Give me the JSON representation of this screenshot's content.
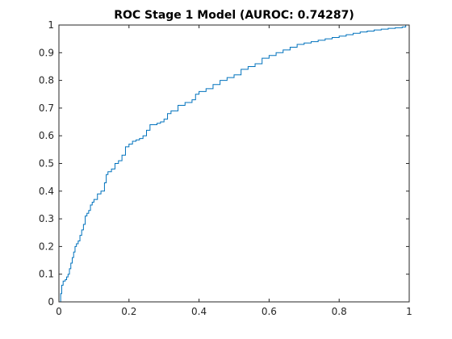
{
  "chart_data": {
    "type": "line",
    "title": "ROC Stage 1 Model (AUROC: 0.74287)",
    "xlabel": "",
    "ylabel": "",
    "xlim": [
      0,
      1
    ],
    "ylim": [
      0,
      1
    ],
    "x_ticks": [
      0,
      0.2,
      0.4,
      0.6,
      0.8,
      1
    ],
    "x_tick_labels": [
      "0",
      "0.2",
      "0.4",
      "0.6",
      "0.8",
      "1"
    ],
    "y_ticks": [
      0,
      0.1,
      0.2,
      0.3,
      0.4,
      0.5,
      0.6,
      0.7,
      0.8,
      0.9,
      1
    ],
    "y_tick_labels": [
      "0",
      "0.1",
      "0.2",
      "0.3",
      "0.4",
      "0.5",
      "0.6",
      "0.7",
      "0.8",
      "0.9",
      "1"
    ],
    "grid": false,
    "line_color": "#0072bd",
    "series": [
      {
        "x": [
          0,
          0.005,
          0.008,
          0.012,
          0.018,
          0.022,
          0.026,
          0.03,
          0.034,
          0.038,
          0.042,
          0.046,
          0.05,
          0.055,
          0.06,
          0.065,
          0.07,
          0.075,
          0.08,
          0.085,
          0.09,
          0.095,
          0.1,
          0.11,
          0.12,
          0.13,
          0.135,
          0.14,
          0.15,
          0.16,
          0.17,
          0.18,
          0.19,
          0.2,
          0.21,
          0.22,
          0.23,
          0.24,
          0.25,
          0.26,
          0.27,
          0.28,
          0.29,
          0.3,
          0.31,
          0.32,
          0.34,
          0.36,
          0.38,
          0.39,
          0.4,
          0.42,
          0.44,
          0.46,
          0.48,
          0.5,
          0.52,
          0.54,
          0.56,
          0.58,
          0.6,
          0.62,
          0.64,
          0.66,
          0.68,
          0.7,
          0.72,
          0.74,
          0.76,
          0.78,
          0.8,
          0.82,
          0.84,
          0.86,
          0.88,
          0.9,
          0.92,
          0.94,
          0.96,
          0.98,
          0.99,
          1.0
        ],
        "y": [
          0,
          0.03,
          0.06,
          0.075,
          0.08,
          0.09,
          0.1,
          0.12,
          0.14,
          0.16,
          0.18,
          0.2,
          0.21,
          0.22,
          0.24,
          0.26,
          0.28,
          0.31,
          0.32,
          0.33,
          0.35,
          0.36,
          0.37,
          0.39,
          0.4,
          0.43,
          0.46,
          0.47,
          0.48,
          0.5,
          0.51,
          0.53,
          0.56,
          0.57,
          0.58,
          0.585,
          0.59,
          0.6,
          0.62,
          0.64,
          0.64,
          0.645,
          0.65,
          0.66,
          0.68,
          0.69,
          0.71,
          0.72,
          0.73,
          0.75,
          0.76,
          0.77,
          0.785,
          0.8,
          0.81,
          0.82,
          0.84,
          0.85,
          0.86,
          0.88,
          0.89,
          0.9,
          0.91,
          0.92,
          0.93,
          0.935,
          0.94,
          0.945,
          0.95,
          0.955,
          0.96,
          0.965,
          0.97,
          0.975,
          0.978,
          0.982,
          0.985,
          0.988,
          0.99,
          0.993,
          1.0,
          1.0
        ]
      }
    ]
  }
}
